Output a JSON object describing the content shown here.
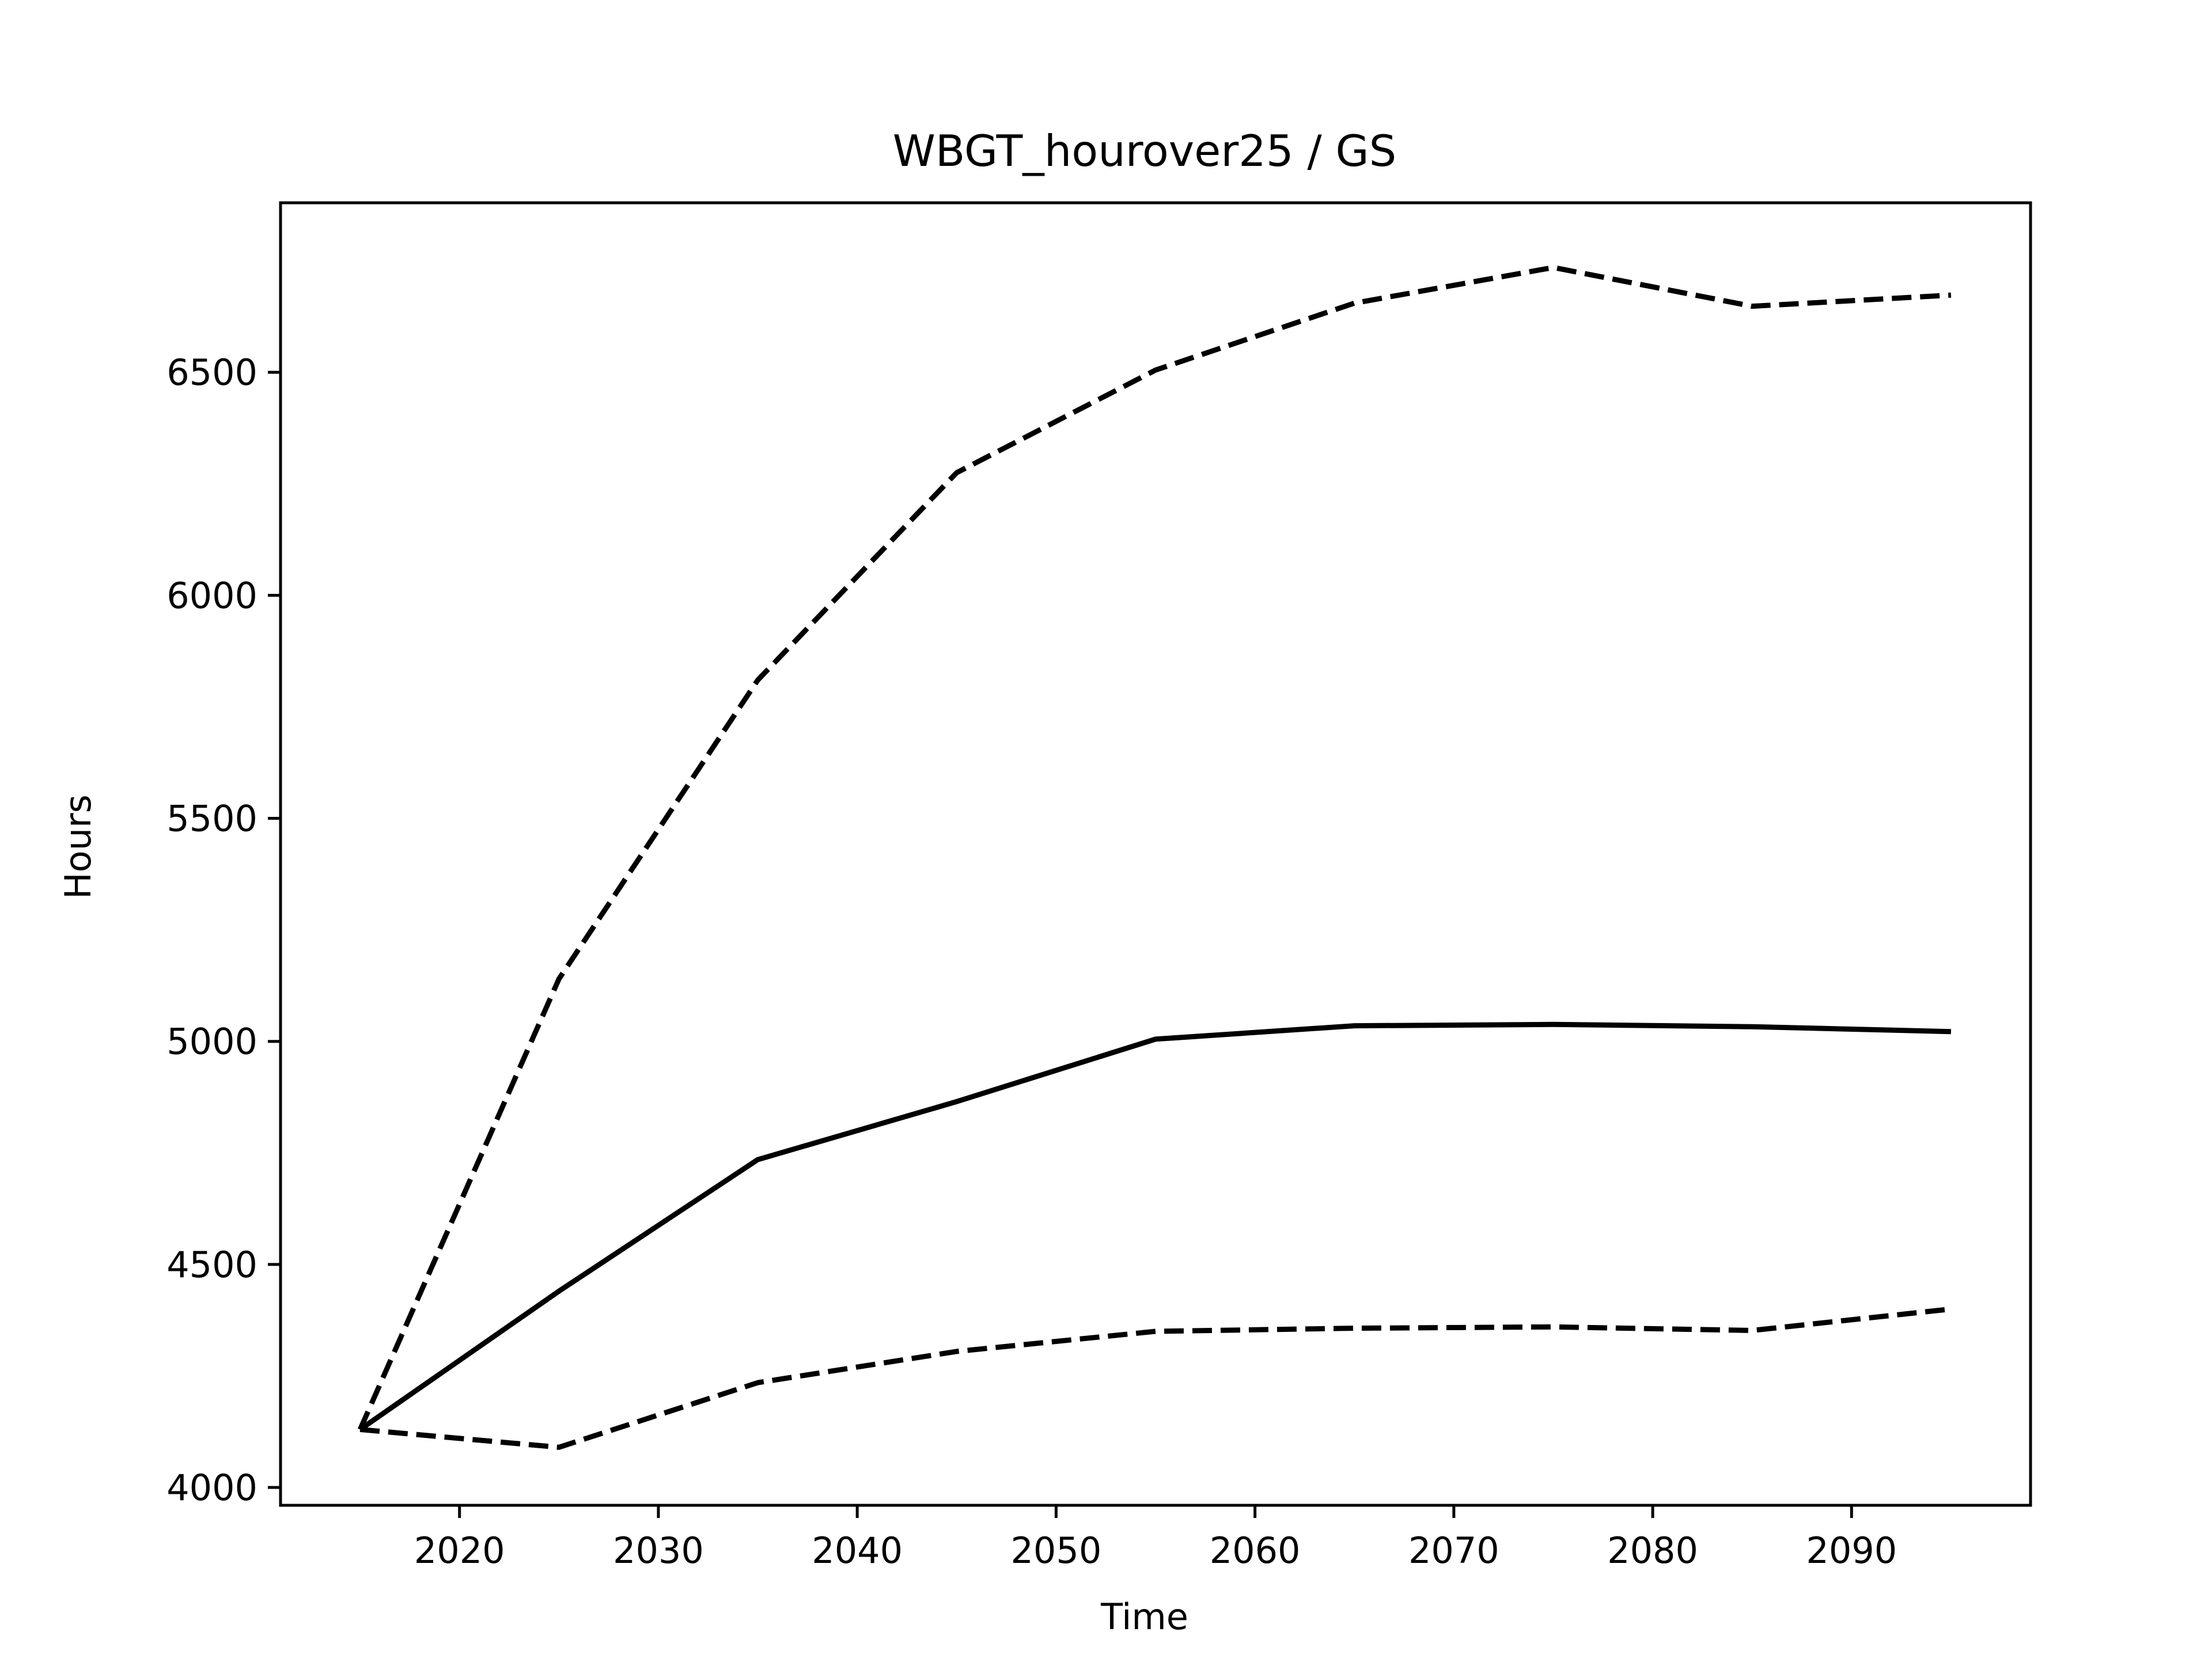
{
  "chart_data": {
    "type": "line",
    "title": "WBGT_hourover25 / GS",
    "xlabel": "Time",
    "ylabel": "Hours",
    "x": [
      2015,
      2025,
      2035,
      2045,
      2055,
      2065,
      2075,
      2085,
      2095
    ],
    "xlim": [
      2011,
      2099
    ],
    "ylim": [
      3960,
      6880
    ],
    "xticks": [
      2020,
      2030,
      2040,
      2050,
      2060,
      2070,
      2080,
      2090
    ],
    "yticks": [
      4000,
      4500,
      5000,
      5500,
      6000,
      6500
    ],
    "grid": false,
    "legend": "none",
    "series": [
      {
        "style": "solid",
        "color": "#000000",
        "values": [
          4130,
          4440,
          4735,
          4865,
          5005,
          5035,
          5038,
          5033,
          5022
        ]
      },
      {
        "style": "dashed",
        "color": "#000000",
        "values": [
          4130,
          5140,
          5810,
          6275,
          6505,
          6655,
          6735,
          6648,
          6673
        ]
      },
      {
        "style": "dashed",
        "color": "#000000",
        "values": [
          4130,
          4090,
          4235,
          4305,
          4350,
          4357,
          4360,
          4352,
          4400
        ]
      }
    ]
  }
}
